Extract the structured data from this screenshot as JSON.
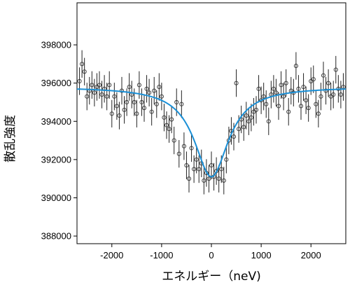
{
  "chart_data": {
    "type": "scatter",
    "title": "",
    "xlabel": "エネルギー（neV)",
    "ylabel": "散乱強度",
    "xlim": [
      -2700,
      2700
    ],
    "ylim": [
      387600,
      400200
    ],
    "x_ticks": [
      -2000,
      -1000,
      0,
      1000,
      2000
    ],
    "x_tick_labels": [
      "-2000",
      "-1000",
      "0",
      "1000",
      "2000"
    ],
    "y_ticks": [
      388000,
      390000,
      392000,
      394000,
      396000,
      398000
    ],
    "y_tick_labels": [
      "388000",
      "390000",
      "392000",
      "394000",
      "396000",
      "398000"
    ],
    "grid": false,
    "colors": {
      "points": "#333333",
      "fit": "#1a8fd6"
    },
    "series": [
      {
        "kind": "points_with_errorbars",
        "x": [
          -2650,
          -2600,
          -2550,
          -2500,
          -2450,
          -2400,
          -2350,
          -2300,
          -2250,
          -2200,
          -2150,
          -2100,
          -2050,
          -2000,
          -1950,
          -1900,
          -1850,
          -1800,
          -1750,
          -1700,
          -1650,
          -1600,
          -1550,
          -1500,
          -1450,
          -1400,
          -1350,
          -1300,
          -1250,
          -1200,
          -1150,
          -1100,
          -1050,
          -1000,
          -950,
          -900,
          -850,
          -800,
          -750,
          -700,
          -650,
          -600,
          -550,
          -500,
          -450,
          -400,
          -350,
          -300,
          -250,
          -200,
          -150,
          -100,
          -50,
          0,
          50,
          100,
          150,
          200,
          250,
          300,
          350,
          400,
          450,
          500,
          550,
          600,
          650,
          700,
          750,
          800,
          850,
          900,
          950,
          1000,
          1050,
          1100,
          1150,
          1200,
          1250,
          1300,
          1350,
          1400,
          1450,
          1500,
          1550,
          1600,
          1650,
          1700,
          1750,
          1800,
          1850,
          1900,
          1950,
          2000,
          2050,
          2100,
          2150,
          2200,
          2250,
          2300,
          2350,
          2400,
          2450,
          2500,
          2550,
          2600,
          2650
        ],
        "y": [
          396100,
          397000,
          396600,
          395300,
          395600,
          395900,
          395500,
          395800,
          395900,
          395400,
          395700,
          395300,
          395900,
          394400,
          395300,
          394800,
          394300,
          395600,
          394600,
          395000,
          395800,
          395400,
          395000,
          394400,
          395900,
          395000,
          394700,
          395700,
          395500,
          394500,
          395600,
          394900,
          395800,
          395300,
          394200,
          393800,
          393600,
          394100,
          393000,
          395000,
          392300,
          394900,
          392700,
          391700,
          391000,
          392600,
          391500,
          392000,
          391500,
          391800,
          390900,
          391300,
          391000,
          391700,
          391100,
          391400,
          391000,
          391500,
          390900,
          392000,
          393000,
          393500,
          393200,
          396000,
          393600,
          394100,
          393700,
          394300,
          394000,
          394200,
          394500,
          394600,
          395700,
          395100,
          395300,
          394900,
          394000,
          395400,
          395700,
          395500,
          394800,
          395900,
          395300,
          396000,
          394500,
          395600,
          395500,
          396900,
          395700,
          394800,
          395800,
          395100,
          394700,
          396100,
          396200,
          394900,
          394400,
          395300,
          396400,
          395600,
          396000,
          395300,
          395400,
          396700,
          395700,
          395400,
          395800
        ],
        "err": 720
      },
      {
        "kind": "fit_curve",
        "baseline": 395800,
        "depth": 4700,
        "center": 0,
        "hwhm": 420
      }
    ]
  }
}
